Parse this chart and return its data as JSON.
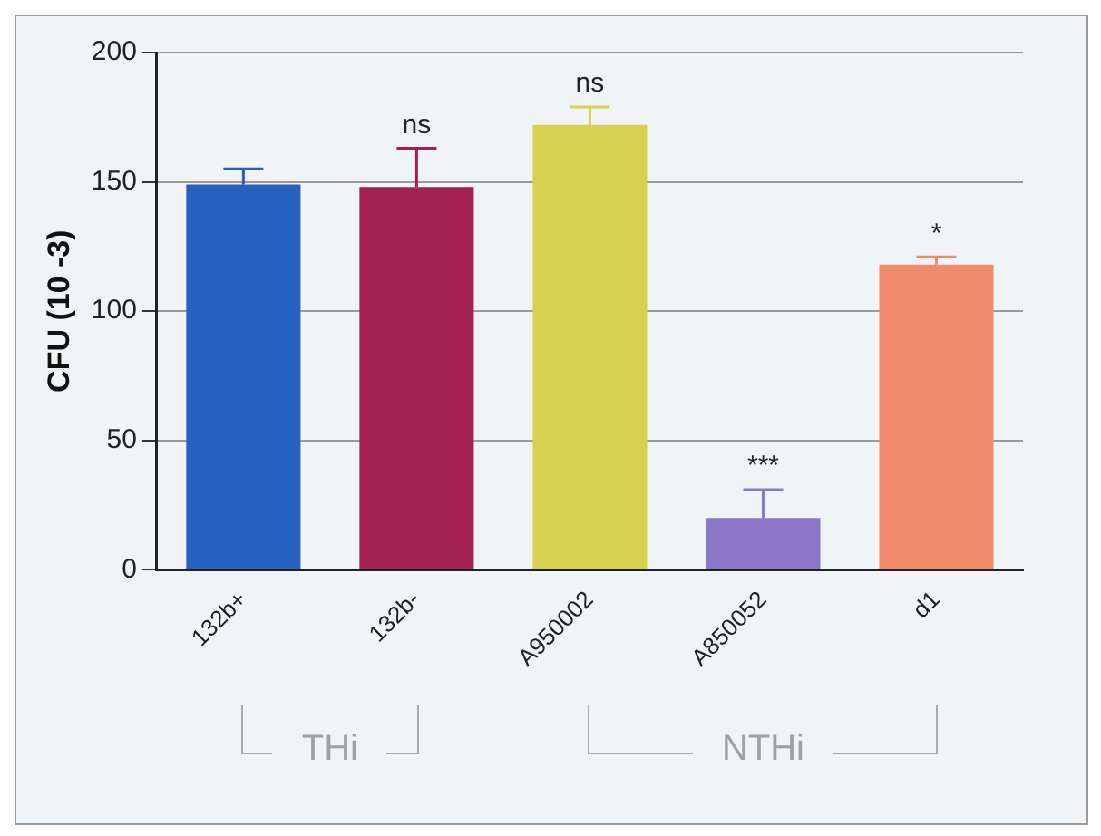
{
  "chart_data": {
    "type": "bar",
    "ylabel": "CFU (10 -3)",
    "categories": [
      "132b+",
      "132b-",
      "A950002",
      "A850052",
      "d1"
    ],
    "values": [
      149,
      148,
      172,
      20,
      118
    ],
    "colors": [
      "#2760bf",
      "#a3214f",
      "#d6d250",
      "#8b78c8",
      "#f08c6c"
    ],
    "errors": [
      [
        149,
        155
      ],
      [
        148,
        163
      ],
      [
        172,
        179
      ],
      [
        20,
        31
      ],
      [
        118,
        121
      ]
    ],
    "ylim": [
      0,
      200
    ],
    "yticks": [
      0,
      50,
      100,
      150,
      200
    ],
    "grid": "y",
    "legend": false,
    "annotations": [
      {
        "text": "ns",
        "x": "132b-",
        "y": 163
      },
      {
        "text": "ns",
        "x": "A950002",
        "y": 179
      },
      {
        "text": "***",
        "x": "A850052",
        "y": 31
      },
      {
        "text": "*",
        "x": "d1",
        "y": 121
      },
      "THi",
      "NTHi"
    ]
  }
}
